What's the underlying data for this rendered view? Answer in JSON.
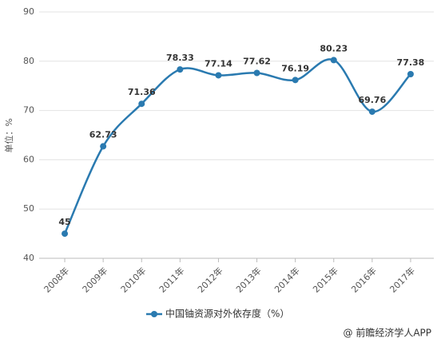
{
  "chart_data": {
    "type": "line",
    "y_label": "单位：%",
    "categories": [
      "2008年",
      "2009年",
      "2010年",
      "2011年",
      "2012年",
      "2013年",
      "2014年",
      "2015年",
      "2016年",
      "2017年"
    ],
    "series": [
      {
        "name": "中国铀资源对外依存度（%）",
        "color": "#2a7ab0",
        "values": [
          45,
          62.73,
          71.36,
          78.33,
          77.14,
          77.62,
          76.19,
          80.23,
          69.76,
          77.38
        ]
      }
    ],
    "ylim": [
      40,
      90
    ],
    "yticks": [
      40,
      50,
      60,
      70,
      80,
      90
    ],
    "grid": true,
    "source": "@ 前瞻经济学人APP"
  }
}
